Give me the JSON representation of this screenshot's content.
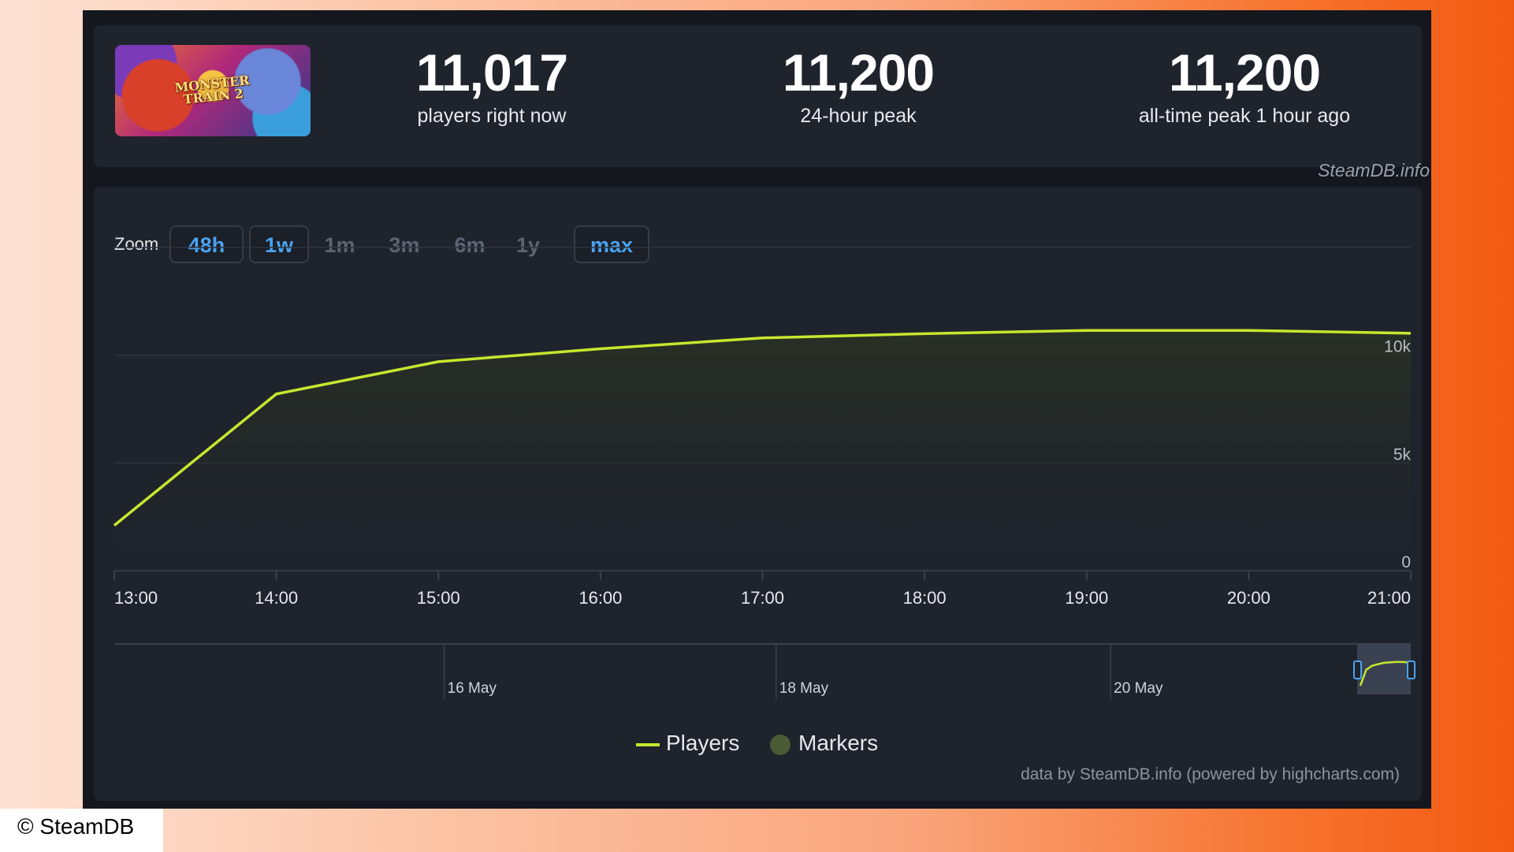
{
  "stats": {
    "current": {
      "value": "11,017",
      "label": "players right now"
    },
    "peak24": {
      "value": "11,200",
      "label": "24-hour peak"
    },
    "alltime": {
      "value": "11,200",
      "label": "all-time peak 1 hour ago"
    },
    "game_logo_text": "MONSTER TRAIN 2"
  },
  "watermark": "SteamDB.info",
  "zoom": {
    "label": "Zoom",
    "buttons": [
      {
        "label": "48h",
        "active": true
      },
      {
        "label": "1w",
        "active": true
      },
      {
        "label": "1m",
        "active": false
      },
      {
        "label": "3m",
        "active": false
      },
      {
        "label": "6m",
        "active": false
      },
      {
        "label": "1y",
        "active": false
      },
      {
        "label": "max",
        "active": true
      }
    ]
  },
  "chart_data": {
    "type": "line",
    "x": [
      "13:00",
      "14:00",
      "15:00",
      "16:00",
      "17:00",
      "18:00",
      "19:00",
      "20:00",
      "21:00"
    ],
    "series": [
      {
        "name": "Players",
        "values": [
          2100,
          8200,
          9700,
          10300,
          10800,
          11000,
          11150,
          11150,
          11017
        ]
      }
    ],
    "ylim": [
      0,
      15000
    ],
    "y_ticks": [
      "0",
      "5k",
      "10k"
    ],
    "y_tick_values": [
      0,
      5000,
      10000
    ],
    "navigator_labels": [
      "16 May",
      "18 May",
      "20 May"
    ],
    "legend": [
      "Players",
      "Markers"
    ],
    "line_color": "#c8e62e",
    "marker_color": "#4a5b35",
    "grid": true,
    "legend_position": "bottom"
  },
  "credit": "data by SteamDB.info (powered by highcharts.com)",
  "copyright": "© SteamDB"
}
